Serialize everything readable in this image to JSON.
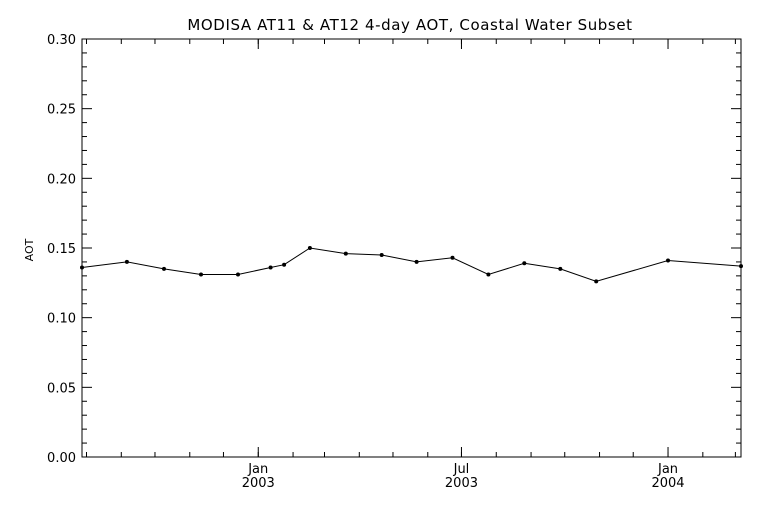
{
  "chart_data": {
    "type": "line",
    "title": "MODISA AT11 & AT12 4-day AOT, Coastal Water Subset",
    "xlabel": "",
    "ylabel": "AOT",
    "ylim": [
      0.0,
      0.3
    ],
    "xlim": [
      "2002-07-28",
      "2004-03-06"
    ],
    "y_ticks": [
      "0.00",
      "0.05",
      "0.10",
      "0.15",
      "0.20",
      "0.25",
      "0.30"
    ],
    "x_ticks": [
      {
        "date": "2003-01-01",
        "label_top": "Jan",
        "label_bottom": "2003"
      },
      {
        "date": "2003-07-01",
        "label_top": "Jul",
        "label_bottom": "2003"
      },
      {
        "date": "2004-01-01",
        "label_top": "Jan",
        "label_bottom": "2004"
      }
    ],
    "grid": false,
    "line_color": "#000000",
    "series": [
      {
        "x": [
          "2002-07-28",
          "2002-09-06",
          "2002-10-09",
          "2002-11-11",
          "2002-12-14",
          "2003-01-12",
          "2003-01-24",
          "2003-02-16",
          "2003-03-20",
          "2003-04-21",
          "2003-05-22",
          "2003-06-23",
          "2003-07-25",
          "2003-08-26",
          "2003-09-27",
          "2003-10-29",
          "2004-01-01",
          "2004-03-06"
        ],
        "values": [
          0.136,
          0.14,
          0.135,
          0.131,
          0.131,
          0.136,
          0.138,
          0.15,
          0.146,
          0.145,
          0.14,
          0.143,
          0.131,
          0.139,
          0.135,
          0.126,
          0.141,
          0.137
        ]
      }
    ]
  }
}
